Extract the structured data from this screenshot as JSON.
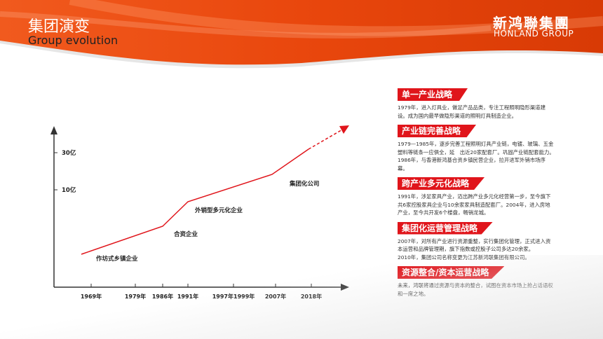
{
  "header": {
    "title": "集团演变",
    "subtitle": "Group evolution",
    "logo_cn": "新鸿聯集團",
    "logo_en": "HONLAND GROUP"
  },
  "colors": {
    "brand": "#e8420a",
    "accent": "#e0151b",
    "line": "#e0151b"
  },
  "chart_data": {
    "type": "line",
    "y_ticks": [
      "30亿",
      "10亿"
    ],
    "x_ticks": [
      "1969年",
      "1979年",
      "1986年",
      "1991年",
      "1997年1999年",
      "2007年",
      "2018年"
    ],
    "stages": [
      "作坊式乡镇企业",
      "合资企业",
      "外销型多元化企业",
      "集团化公司"
    ],
    "trend": "increasing, dashed arrow beyond 2018"
  },
  "strategies": [
    {
      "title": "单一产业战略",
      "text": [
        "1979年，进入灯具业，做足产品品类，专注工程照明隐形渠道建设。成为国内最早做隐形渠道的照明灯具制造企业。"
      ]
    },
    {
      "title": "产业链完善战略",
      "text": [
        "1979—1985年，逐步完善工程照明灯具产业链，电镀、玻璃、五金塑料等链条一应俱全，延　出近20家配套厂。巩固产业链配套能力。1986年，与香港新鸿基合资乡镇民营企业，拉开进军外销市场序幕。"
      ]
    },
    {
      "title": "跨产业多元化战略",
      "text": [
        "1991年，涉足家具产业，迈出跨产业多元化经营第一步，至今旗下共6家控股家具企业与10余家家具制造配套厂。2004年，进入房地产业，至今共开发6个楼盘，畅销龙城。"
      ]
    },
    {
      "title": "集团化运营管理战略",
      "text": [
        "2007年，对所有产业进行资源重整，实行集团化管理，正式进入资本运营和品牌管理期，旗下指数或控股子公司多达20余家。",
        "2010年，集团公司名称变更为江苏新鸿联集团有限公司。"
      ]
    },
    {
      "title": "资源整合/资本运营战略",
      "text": [
        "未来，鸿联将通过资源与资本的整合，试图在资本市场上抢占话语权和一席之地。"
      ]
    }
  ]
}
